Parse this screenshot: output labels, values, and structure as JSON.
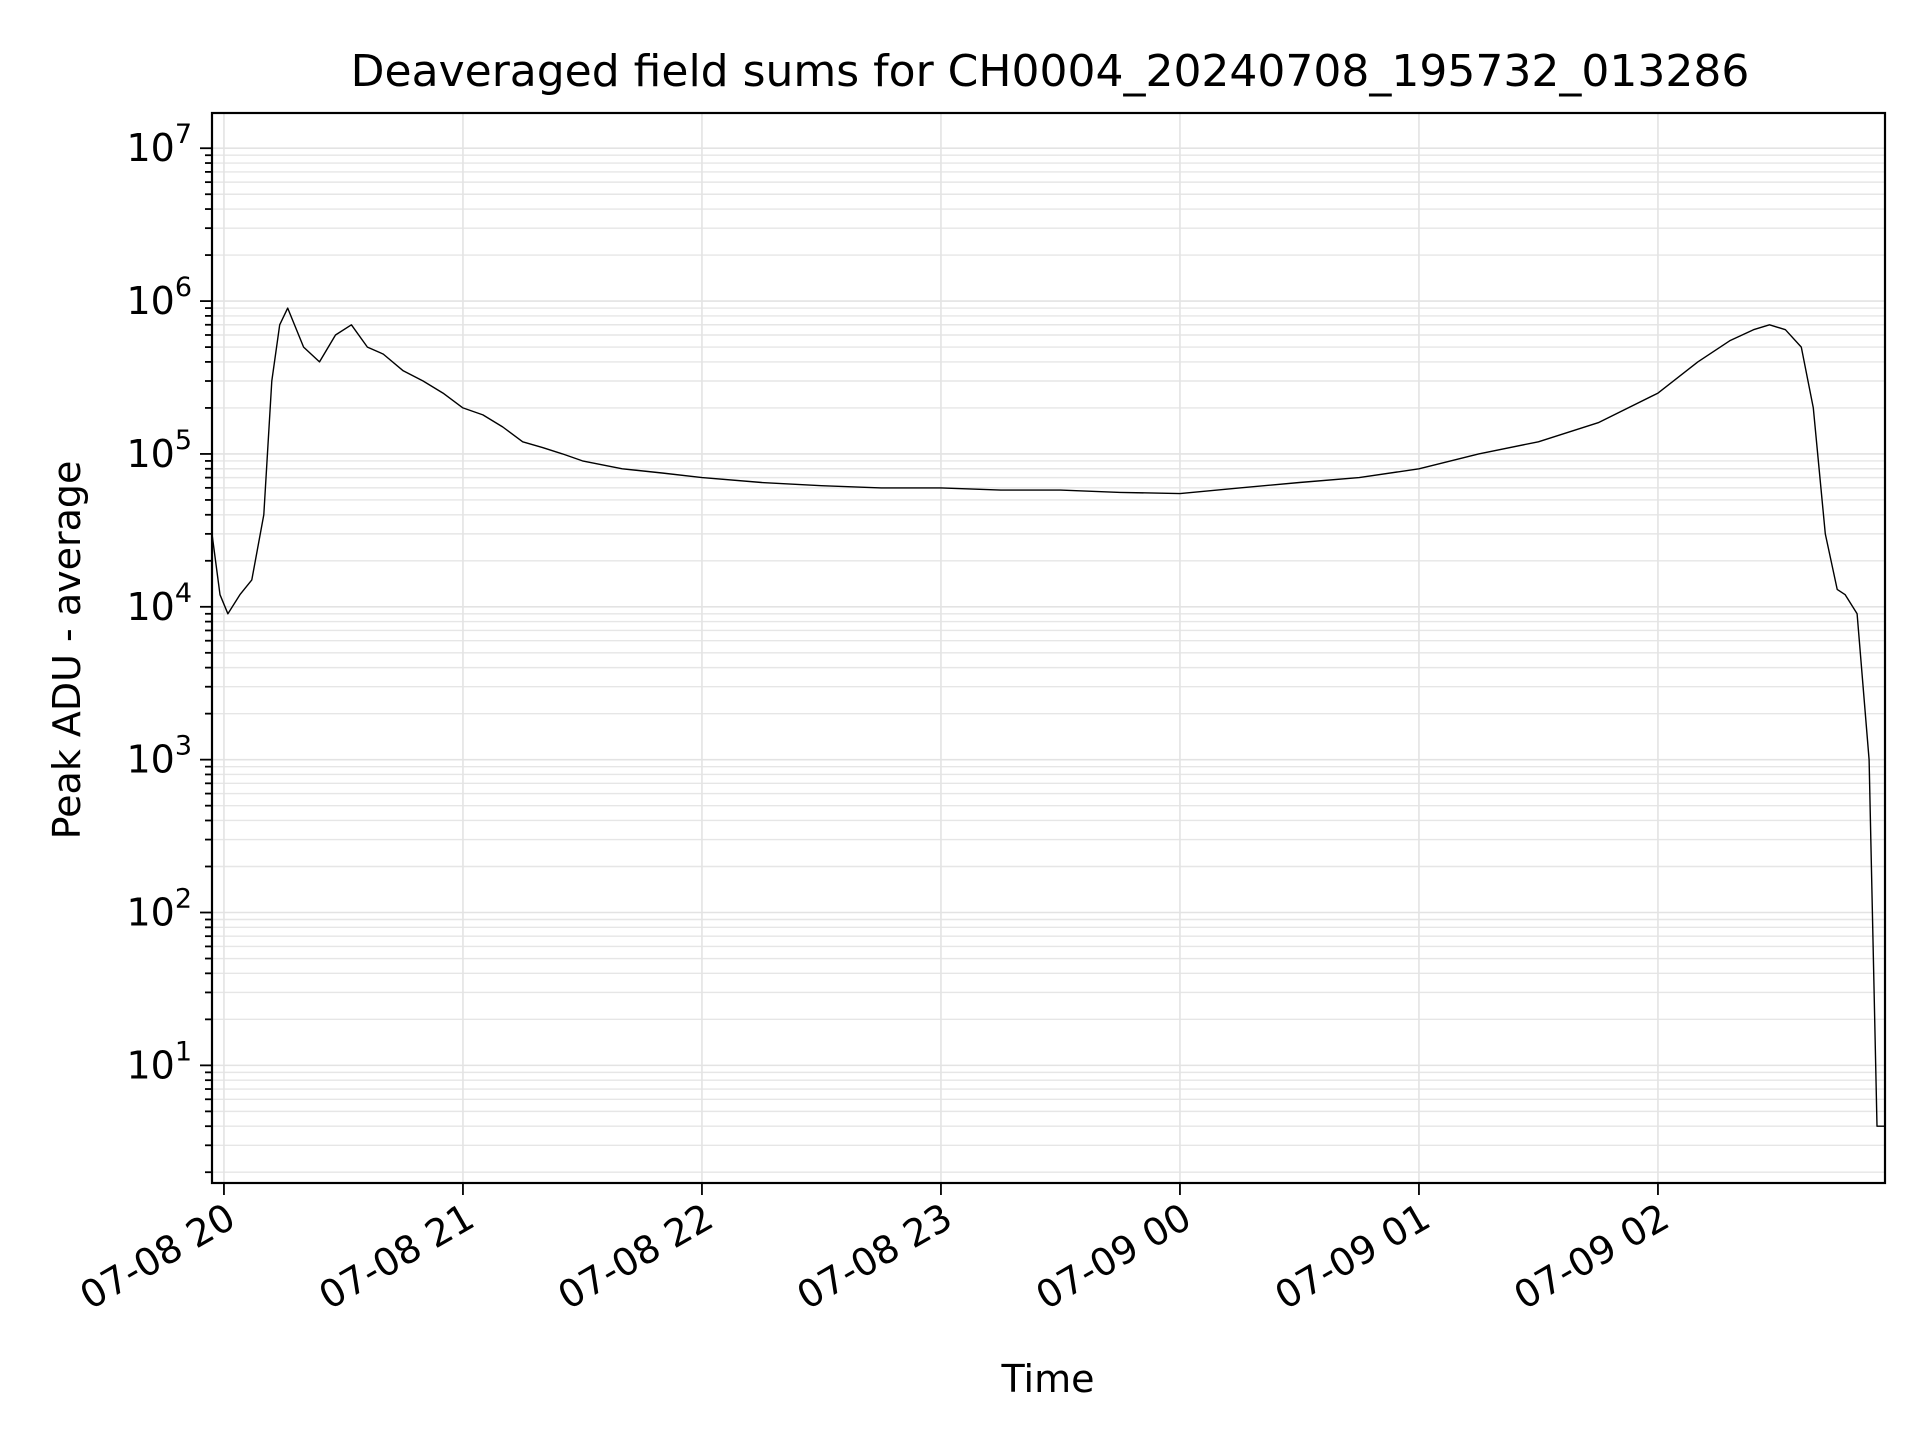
{
  "chart_data": {
    "type": "line",
    "title": "Deaveraged field sums for CH0004_20240708_195732_013286",
    "xlabel": "Time",
    "ylabel": "Peak ADU - average",
    "yscale": "log",
    "ylim": [
      1.7,
      17000000
    ],
    "xlim": [
      "2024-07-08 19:57",
      "2024-07-09 02:57"
    ],
    "grid": true,
    "grid_color": "#e3e3e3",
    "line_color": "#000000",
    "x_ticks": [
      {
        "value": "2024-07-08 20:00",
        "label": "07-08 20"
      },
      {
        "value": "2024-07-08 21:00",
        "label": "07-08 21"
      },
      {
        "value": "2024-07-08 22:00",
        "label": "07-08 22"
      },
      {
        "value": "2024-07-08 23:00",
        "label": "07-08 23"
      },
      {
        "value": "2024-07-09 00:00",
        "label": "07-09 00"
      },
      {
        "value": "2024-07-09 01:00",
        "label": "07-09 01"
      },
      {
        "value": "2024-07-09 02:00",
        "label": "07-09 02"
      }
    ],
    "y_ticks": [
      {
        "value": 10,
        "base": "10",
        "exp": "1"
      },
      {
        "value": 100,
        "base": "10",
        "exp": "2"
      },
      {
        "value": 1000,
        "base": "10",
        "exp": "3"
      },
      {
        "value": 10000,
        "base": "10",
        "exp": "4"
      },
      {
        "value": 100000,
        "base": "10",
        "exp": "5"
      },
      {
        "value": 1000000,
        "base": "10",
        "exp": "6"
      },
      {
        "value": 10000000,
        "base": "10",
        "exp": "7"
      }
    ],
    "series": [
      {
        "x": [
          "2024-07-08 19:57",
          "2024-07-08 19:59",
          "2024-07-08 20:01",
          "2024-07-08 20:04",
          "2024-07-08 20:07",
          "2024-07-08 20:10",
          "2024-07-08 20:12",
          "2024-07-08 20:14",
          "2024-07-08 20:16",
          "2024-07-08 20:20",
          "2024-07-08 20:24",
          "2024-07-08 20:28",
          "2024-07-08 20:32",
          "2024-07-08 20:36",
          "2024-07-08 20:40",
          "2024-07-08 20:45",
          "2024-07-08 20:50",
          "2024-07-08 20:55",
          "2024-07-08 21:00",
          "2024-07-08 21:05",
          "2024-07-08 21:10",
          "2024-07-08 21:15",
          "2024-07-08 21:20",
          "2024-07-08 21:25",
          "2024-07-08 21:30",
          "2024-07-08 21:40",
          "2024-07-08 21:50",
          "2024-07-08 22:00",
          "2024-07-08 22:15",
          "2024-07-08 22:30",
          "2024-07-08 22:45",
          "2024-07-08 23:00",
          "2024-07-08 23:15",
          "2024-07-08 23:30",
          "2024-07-08 23:45",
          "2024-07-09 00:00",
          "2024-07-09 00:15",
          "2024-07-09 00:30",
          "2024-07-09 00:45",
          "2024-07-09 01:00",
          "2024-07-09 01:15",
          "2024-07-09 01:30",
          "2024-07-09 01:45",
          "2024-07-09 02:00",
          "2024-07-09 02:10",
          "2024-07-09 02:18",
          "2024-07-09 02:24",
          "2024-07-09 02:28",
          "2024-07-09 02:32",
          "2024-07-09 02:36",
          "2024-07-09 02:39",
          "2024-07-09 02:42",
          "2024-07-09 02:45",
          "2024-07-09 02:47",
          "2024-07-09 02:50",
          "2024-07-09 02:53",
          "2024-07-09 02:55",
          "2024-07-09 02:57"
        ],
        "y": [
          30000,
          12000,
          9000,
          12000,
          15000,
          40000,
          300000,
          700000,
          900000,
          500000,
          400000,
          600000,
          700000,
          500000,
          450000,
          350000,
          300000,
          250000,
          200000,
          180000,
          150000,
          120000,
          110000,
          100000,
          90000,
          80000,
          75000,
          70000,
          65000,
          62000,
          60000,
          60000,
          58000,
          58000,
          56000,
          55000,
          60000,
          65000,
          70000,
          80000,
          100000,
          120000,
          160000,
          250000,
          400000,
          550000,
          650000,
          700000,
          650000,
          500000,
          200000,
          30000,
          13000,
          12000,
          9000,
          1000,
          4,
          4
        ]
      }
    ]
  }
}
